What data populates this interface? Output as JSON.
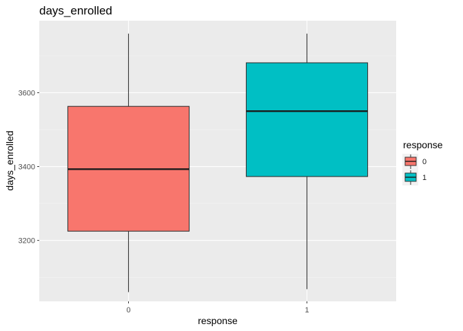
{
  "chart_data": {
    "type": "boxplot",
    "title": "days_enrolled",
    "xlabel": "response",
    "ylabel": "days_enrolled",
    "categories": [
      "0",
      "1"
    ],
    "ylim": [
      3035,
      3795
    ],
    "yticks": [
      3200,
      3400,
      3600
    ],
    "grid": true,
    "legend": {
      "title": "response",
      "position": "right",
      "entries": [
        "0",
        "1"
      ]
    },
    "series": [
      {
        "category": "0",
        "color": "#F8766D",
        "whisker_low": 3060,
        "q1": 3225,
        "median": 3393,
        "q3": 3563,
        "whisker_high": 3760
      },
      {
        "category": "1",
        "color": "#00BFC4",
        "whisker_low": 3068,
        "q1": 3373,
        "median": 3550,
        "q3": 3681,
        "whisker_high": 3760
      }
    ]
  }
}
